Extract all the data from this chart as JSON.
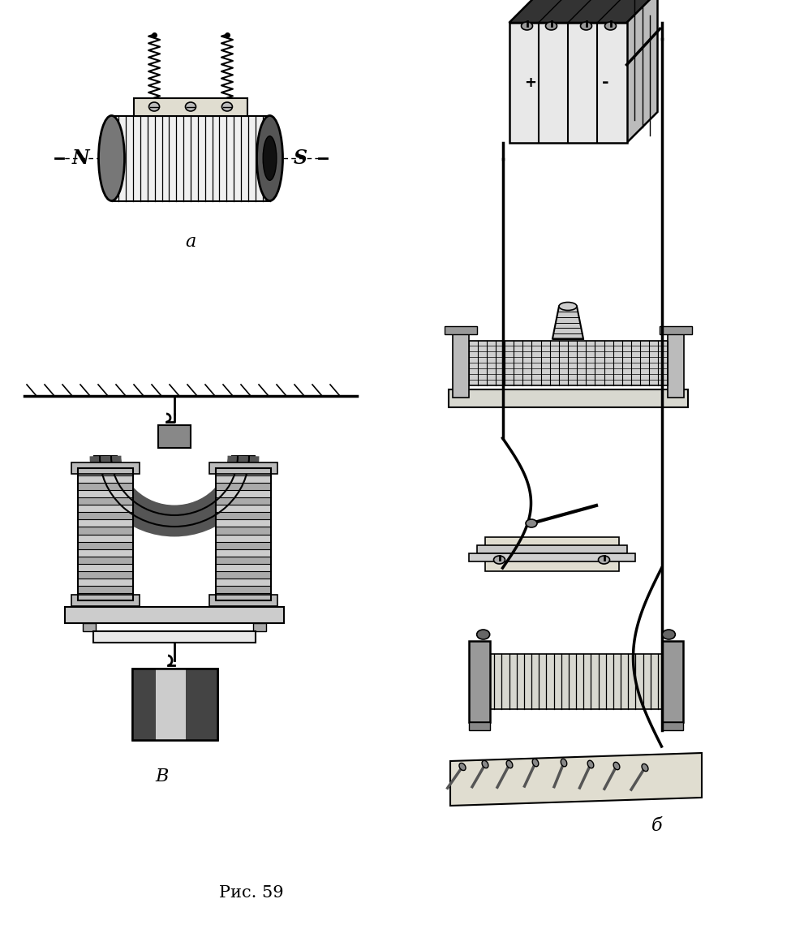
{
  "background_color": "#ffffff",
  "fig_width": 9.75,
  "fig_height": 11.61,
  "dpi": 100,
  "label_a": "a",
  "label_b": "б",
  "label_v": "B",
  "caption": "Рис. 59",
  "label_N": "N",
  "label_S": "S"
}
